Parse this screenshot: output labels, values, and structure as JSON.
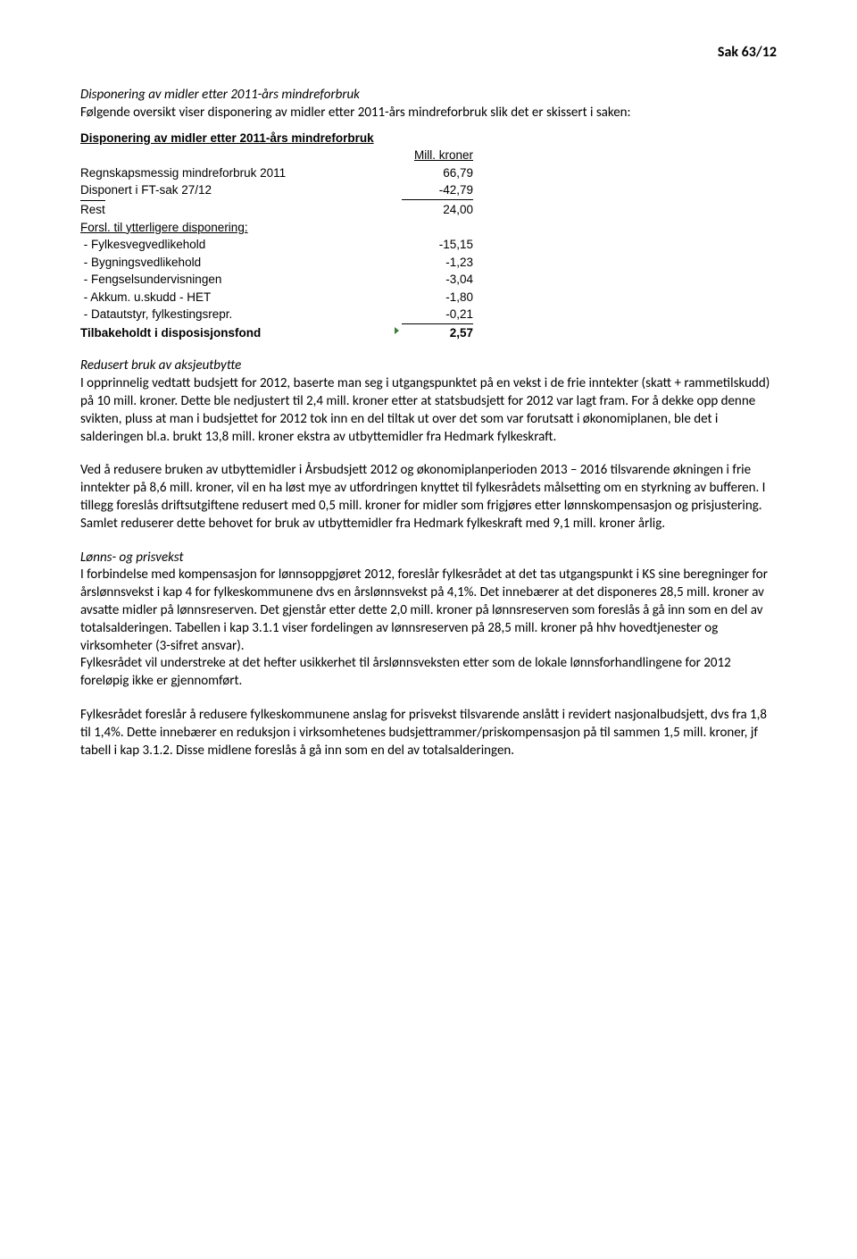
{
  "header": {
    "case_ref": "Sak 63/12"
  },
  "sec1": {
    "title": "Disponering av midler etter 2011-års mindreforbruk",
    "body": "Følgende oversikt viser disponering av midler etter 2011-års mindreforbruk slik det er skissert i saken:"
  },
  "table": {
    "title": "Disponering av midler etter 2011-års mindreforbruk",
    "unit": "Mill. kroner",
    "rows_top": [
      {
        "label": "Regnskapsmessig mindreforbruk 2011",
        "val": "66,79"
      },
      {
        "label": "Disponert i FT-sak 27/12",
        "val": "-42,79"
      }
    ],
    "rest": {
      "label": "Rest",
      "val": "24,00"
    },
    "forsl": "Forsl. til ytterligere disponering:",
    "rows_bottom": [
      {
        "label": " - Fylkesvegvedlikehold",
        "val": "-15,15"
      },
      {
        "label": " - Bygningsvedlikehold",
        "val": "-1,23"
      },
      {
        "label": " - Fengselsundervisningen",
        "val": "-3,04"
      },
      {
        "label": " - Akkum. u.skudd - HET",
        "val": "-1,80"
      },
      {
        "label": " - Datautstyr, fylkestingsrepr.",
        "val": "-0,21"
      }
    ],
    "final": {
      "label": "Tilbakeholdt i disposisjonsfond",
      "val": "2,57"
    }
  },
  "sec2": {
    "title": "Redusert bruk av aksjeutbytte",
    "p1": "I opprinnelig vedtatt budsjett for 2012, baserte man seg i utgangspunktet på en vekst i de frie inntekter (skatt + rammetilskudd) på 10 mill. kroner.  Dette ble nedjustert til 2,4 mill. kroner etter at statsbudsjett for 2012 var lagt fram. For å dekke opp denne svikten, pluss at man i budsjettet for 2012 tok inn en del tiltak ut over det som var forutsatt i økonomiplanen, ble det i salderingen bl.a. brukt 13,8 mill. kroner ekstra av utbyttemidler fra Hedmark fylkeskraft.",
    "p2": "Ved å redusere bruken av utbyttemidler i Årsbudsjett 2012 og økonomiplanperioden 2013 – 2016 tilsvarende økningen i frie inntekter på 8,6 mill. kroner, vil en ha løst mye av utfordringen knyttet til fylkesrådets målsetting om en styrkning av bufferen.  I tillegg foreslås driftsutgiftene redusert med 0,5 mill. kroner for midler som frigjøres etter lønnskompensasjon og prisjustering.  Samlet reduserer dette behovet for bruk av utbyttemidler fra Hedmark fylkeskraft med 9,1 mill. kroner årlig."
  },
  "sec3": {
    "title": "Lønns- og prisvekst",
    "p1": "I forbindelse med kompensasjon for lønnsoppgjøret 2012, foreslår fylkesrådet at det tas utgangspunkt i KS sine beregninger for årslønnsvekst i kap 4 for fylkeskommunene dvs en årslønnsvekst på 4,1%. Det innebærer at det disponeres 28,5 mill. kroner av avsatte midler på lønnsreserven. Det gjenstår etter dette 2,0 mill. kroner på lønnsreserven som foreslås å gå inn som en del av totalsalderingen. Tabellen i kap 3.1.1 viser fordelingen av lønnsreserven på 28,5 mill. kroner på hhv hovedtjenester og virksomheter (3-sifret ansvar).",
    "p2": "Fylkesrådet vil understreke at det hefter usikkerhet til årslønnsveksten etter som de lokale lønnsforhandlingene for 2012 foreløpig ikke er gjennomført.",
    "p3": "Fylkesrådet foreslår å redusere fylkeskommunene anslag for prisvekst tilsvarende anslått i revidert nasjonalbudsjett, dvs fra 1,8 til 1,4%. Dette innebærer en reduksjon i virksomhetenes budsjettrammer/priskompensasjon på til sammen 1,5 mill. kroner, jf tabell i kap 3.1.2. Disse midlene foreslås å gå inn som en del av totalsalderingen."
  }
}
